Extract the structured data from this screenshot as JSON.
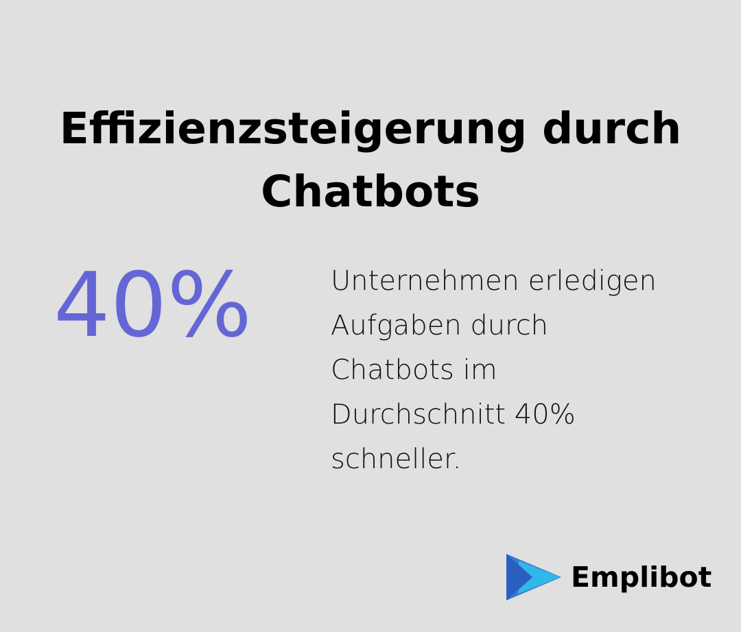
{
  "title": {
    "line1": "Effizienzsteigerung durch",
    "line2": "Chatbots"
  },
  "stat": {
    "value": "40%",
    "description_lines": [
      "Unternehmen erledigen",
      "Aufgaben durch",
      "Chatbots im",
      "Durchschnitt 40%",
      "schneller."
    ]
  },
  "brand": {
    "name": "Emplibot",
    "icon": "play-arrow-logo-icon"
  },
  "colors": {
    "background": "#dfe0df",
    "accent": "#6466d6",
    "logo_blue": "#3a7bd5",
    "logo_cyan": "#2fb8e8",
    "text": "#000000"
  }
}
